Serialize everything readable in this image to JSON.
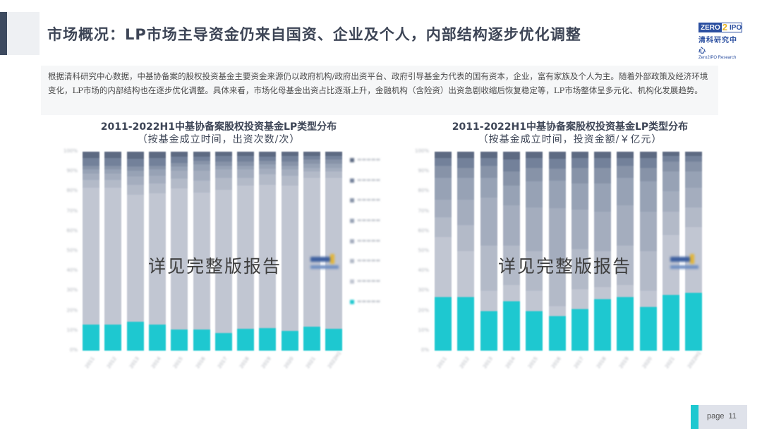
{
  "header": {
    "title": "市场概况：LP市场主导资金仍来自国资、企业及个人，内部结构逐步优化调整",
    "logo": {
      "box_left": "ZERO",
      "box_two": "2",
      "box_right": "IPO",
      "cn": "清科研究中心",
      "en": "Zero2IPO Research"
    }
  },
  "intro": {
    "text": "根据清科研究中心数据，中基协备案的股权投资基金主要资金来源仍以政府机构/政府出资平台、政府引导基金为代表的国有资本，企业，富有家族及个人为主。随着外部政策及经济环境变化，LP市场的内部结构也在逐步优化调整。具体来看，市场化母基金出资占比逐渐上升，金融机构（含险资）出资急剧收缩后恢复稳定等，LP市场整体呈多元化、机构化发展趋势。"
  },
  "watermark": "详见完整版报告",
  "footer": {
    "page_word": "page",
    "page_number": "11"
  },
  "colors": {
    "teal": "#1ec8d0",
    "seg2": "#c1c6d2",
    "seg3": "#b3bac8",
    "seg4": "#a4adbe",
    "seg5": "#97a2b5",
    "seg6": "#8793a8",
    "seg7": "#73819a",
    "seg8": "#5d6a82"
  },
  "chart_data": [
    {
      "type": "bar",
      "stacked": true,
      "title": "2011-2022H1中基协备案股权投资基金LP类型分布",
      "subtitle": "（按基金成立时间，出资次数/次）",
      "xlabel": "",
      "ylabel": "",
      "ylim": [
        0,
        100
      ],
      "yticks": [
        "0%",
        "10%",
        "20%",
        "30%",
        "40%",
        "50%",
        "60%",
        "70%",
        "80%",
        "90%",
        "100%"
      ],
      "categories": [
        "2011",
        "2012",
        "2013",
        "2014",
        "2015",
        "2016",
        "2017",
        "2018",
        "2019",
        "2020",
        "2021",
        "2022H1"
      ],
      "legend_position": "right",
      "legend_note": "legend labels are blurred/illegible in the screenshot",
      "series": [
        {
          "name": "series-1 (teal)",
          "values": [
            13,
            13,
            14.5,
            13,
            10.5,
            10.5,
            9,
            11,
            11.5,
            10,
            12,
            11
          ]
        },
        {
          "name": "series-2",
          "values": [
            69,
            69,
            64,
            66,
            71,
            69,
            72,
            72,
            72,
            73,
            75,
            76
          ]
        },
        {
          "name": "series-3",
          "values": [
            4,
            4,
            5,
            5,
            5,
            6,
            6,
            4,
            5,
            5,
            3,
            3
          ]
        },
        {
          "name": "series-4",
          "values": [
            3,
            3,
            4,
            4,
            4,
            5,
            4,
            4,
            3,
            3,
            2,
            2
          ]
        },
        {
          "name": "series-5",
          "values": [
            2,
            2,
            3,
            3,
            2,
            3,
            2,
            2,
            2,
            2,
            2,
            2
          ]
        },
        {
          "name": "series-6",
          "values": [
            2,
            2,
            2,
            2,
            2,
            2,
            2,
            2,
            2,
            2,
            2,
            2
          ]
        },
        {
          "name": "series-7",
          "values": [
            4,
            4,
            4,
            4,
            3,
            2,
            3,
            3,
            2,
            3,
            2,
            2
          ]
        },
        {
          "name": "series-8",
          "values": [
            3,
            3,
            3.5,
            3,
            2.5,
            2.5,
            2,
            2,
            2.5,
            2,
            2,
            2
          ]
        }
      ]
    },
    {
      "type": "bar",
      "stacked": true,
      "title": "2011-2022H1中基协备案股权投资基金LP类型分布",
      "subtitle": "（按基金成立时间，投资金额/￥亿元）",
      "xlabel": "",
      "ylabel": "",
      "ylim": [
        0,
        100
      ],
      "yticks": [
        "0%",
        "10%",
        "20%",
        "30%",
        "40%",
        "50%",
        "60%",
        "70%",
        "80%",
        "90%",
        "100%"
      ],
      "categories": [
        "2011",
        "2012",
        "2013",
        "2014",
        "2015",
        "2016",
        "2017",
        "2018",
        "2019",
        "2020",
        "2021",
        "2022H1"
      ],
      "series": [
        {
          "name": "series-1 (teal)",
          "values": [
            27,
            27,
            20,
            25,
            20,
            17.5,
            21,
            26,
            27,
            22,
            28,
            29
          ]
        },
        {
          "name": "series-2",
          "values": [
            30,
            23,
            10,
            8,
            10,
            5,
            10,
            6,
            6,
            8,
            30,
            33
          ]
        },
        {
          "name": "series-3",
          "values": [
            10,
            13,
            23,
            20,
            20,
            23,
            20,
            18,
            20,
            20,
            12,
            10
          ]
        },
        {
          "name": "series-4",
          "values": [
            9,
            13,
            24,
            20,
            22,
            26,
            20,
            20,
            20,
            20,
            10,
            10
          ]
        },
        {
          "name": "series-5",
          "values": [
            11,
            11,
            10,
            10,
            13,
            14,
            13,
            14,
            14,
            15,
            10,
            8
          ]
        },
        {
          "name": "series-6",
          "values": [
            6,
            5,
            6,
            7,
            7,
            6,
            8,
            8,
            6,
            7,
            5,
            5
          ]
        },
        {
          "name": "series-7",
          "values": [
            4,
            5,
            4,
            6,
            5,
            5,
            5,
            5,
            4,
            5,
            3,
            3
          ]
        },
        {
          "name": "series-8",
          "values": [
            3,
            3,
            3,
            4,
            3,
            3.5,
            3,
            3,
            3,
            3,
            2,
            2
          ]
        }
      ]
    }
  ]
}
